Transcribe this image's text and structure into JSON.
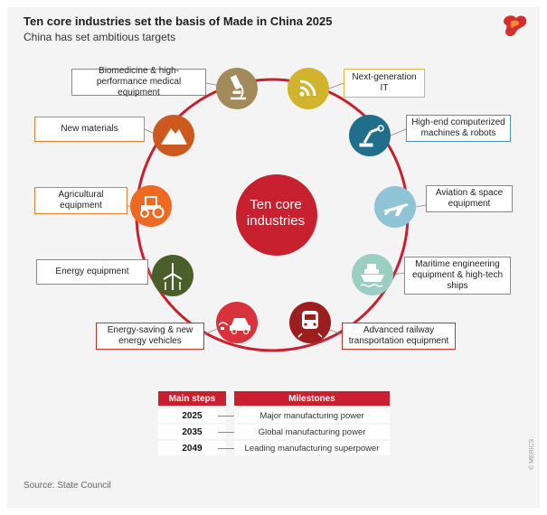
{
  "header": {
    "title": "Ten core industries set the basis of Made in China 2025",
    "subtitle": "China has set ambitious targets"
  },
  "center": {
    "line1": "Ten core",
    "line2": "industries",
    "color": "#c8202f"
  },
  "industries": [
    {
      "label": "Next-generation IT",
      "icon": "wifi-signal-icon",
      "color": "#d2b32c"
    },
    {
      "label": "High-end computerized machines & robots",
      "icon": "robot-arm-icon",
      "color": "#1f6e8c"
    },
    {
      "label": "Aviation & space equipment",
      "icon": "airplane-icon",
      "color": "#8fc3d6"
    },
    {
      "label": "Maritime engineering equipment & high-tech ships",
      "icon": "ship-icon",
      "color": "#9ccfc4"
    },
    {
      "label": "Advanced railway transportation equipment",
      "icon": "train-icon",
      "color": "#9c1e1e"
    },
    {
      "label": "Energy-saving & new energy vehicles",
      "icon": "electric-car-icon",
      "color": "#d9323c"
    },
    {
      "label": "Energy equipment",
      "icon": "wind-turbine-icon",
      "color": "#4a5e2a"
    },
    {
      "label": "Agricultural equipment",
      "icon": "tractor-icon",
      "color": "#ee6a22"
    },
    {
      "label": "New materials",
      "icon": "mountain-icon",
      "color": "#cc5a1e"
    },
    {
      "label": "Biomedicine & high-performance medical equipment",
      "icon": "microscope-icon",
      "color": "#a38a5a"
    }
  ],
  "table": {
    "col1": "Main steps",
    "col2": "Milestones",
    "rows": [
      {
        "year": "2025",
        "milestone": "Major manufacturing power"
      },
      {
        "year": "2035",
        "milestone": "Global manufacturing power"
      },
      {
        "year": "2049",
        "milestone": "Leading manufacturing superpower"
      }
    ]
  },
  "footer": {
    "source": "Source: State Council",
    "credit": "© MERICS"
  }
}
